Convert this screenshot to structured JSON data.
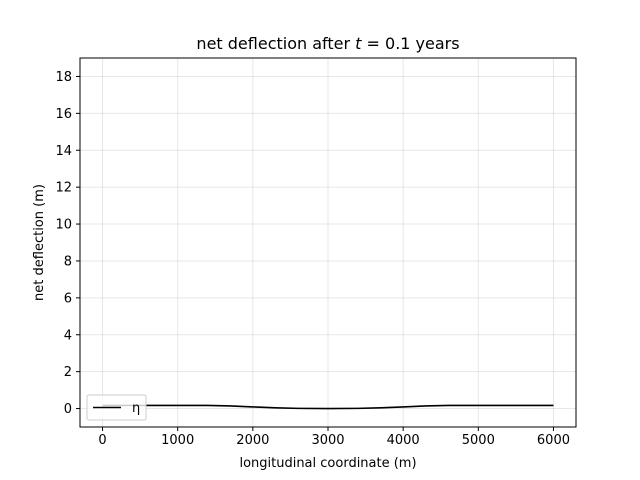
{
  "chart_data": {
    "type": "line",
    "title_prefix": "net deflection after ",
    "title_var": "t",
    "title_suffix": " = 0.1 years",
    "xlabel": "longitudinal coordinate (m)",
    "ylabel": "net deflection (m)",
    "xlim": [
      -300,
      6300
    ],
    "ylim": [
      -1,
      19
    ],
    "xticks": [
      0,
      1000,
      2000,
      3000,
      4000,
      5000,
      6000
    ],
    "yticks": [
      0,
      2,
      4,
      6,
      8,
      10,
      12,
      14,
      16,
      18
    ],
    "grid": true,
    "legend_position": "lower-left",
    "series": [
      {
        "name": "η",
        "color": "#000000",
        "x": [
          0,
          500,
          1000,
          1400,
          1700,
          2000,
          2300,
          2600,
          3000,
          3400,
          3700,
          4000,
          4300,
          4600,
          5000,
          5500,
          6000
        ],
        "y": [
          0.17,
          0.17,
          0.17,
          0.17,
          0.14,
          0.09,
          0.04,
          0.01,
          0.0,
          0.01,
          0.04,
          0.09,
          0.14,
          0.17,
          0.17,
          0.17,
          0.17
        ]
      }
    ]
  }
}
